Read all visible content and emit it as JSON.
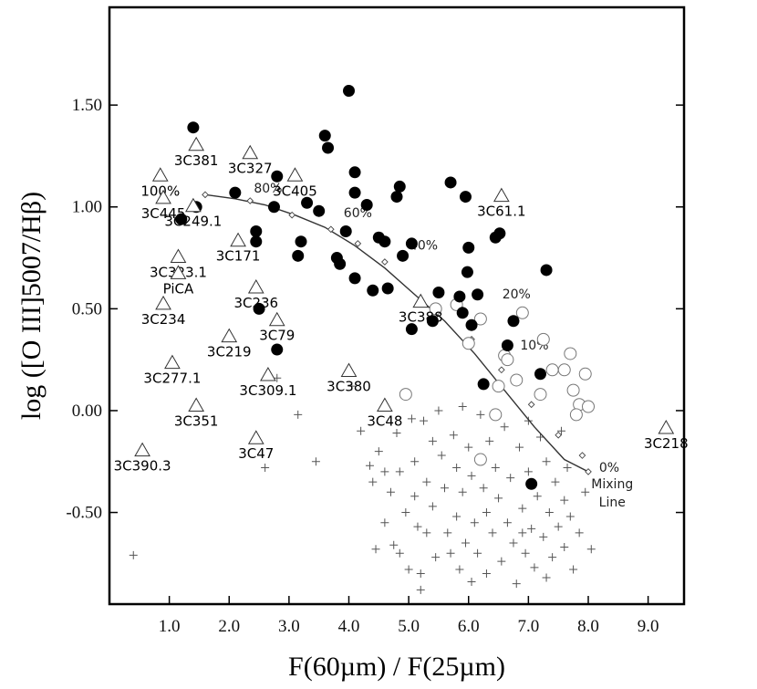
{
  "chart_data": {
    "type": "scatter",
    "xlabel": "F(60µm) / F(25µm)",
    "ylabel": "log ([O III]5007/Hβ)",
    "xlim": [
      0,
      9.6
    ],
    "ylim": [
      -0.95,
      1.98
    ],
    "x_ticks": [
      {
        "v": 1.0,
        "label": "1.0"
      },
      {
        "v": 2.0,
        "label": "2.0"
      },
      {
        "v": 3.0,
        "label": "3.0"
      },
      {
        "v": 4.0,
        "label": "4.0"
      },
      {
        "v": 5.0,
        "label": "5.0"
      },
      {
        "v": 6.0,
        "label": "6.0"
      },
      {
        "v": 7.0,
        "label": "7.0"
      },
      {
        "v": 8.0,
        "label": "8.0"
      },
      {
        "v": 9.0,
        "label": "9.0"
      }
    ],
    "y_ticks": [
      {
        "v": 1.5,
        "label": "1.50"
      },
      {
        "v": 1.0,
        "label": "1.00"
      },
      {
        "v": 0.5,
        "label": "0.50"
      },
      {
        "v": 0.0,
        "label": "0.00"
      },
      {
        "v": -0.5,
        "label": "-0.50"
      }
    ],
    "grid": false,
    "filled_circles": [
      [
        1.4,
        1.39
      ],
      [
        1.2,
        0.94
      ],
      [
        1.45,
        1.0
      ],
      [
        2.1,
        1.07
      ],
      [
        2.45,
        0.88
      ],
      [
        2.45,
        0.83
      ],
      [
        2.5,
        0.5
      ],
      [
        2.8,
        1.15
      ],
      [
        2.75,
        1.0
      ],
      [
        2.8,
        0.3
      ],
      [
        3.15,
        0.76
      ],
      [
        3.2,
        0.83
      ],
      [
        3.3,
        1.02
      ],
      [
        3.5,
        0.98
      ],
      [
        3.6,
        1.35
      ],
      [
        3.65,
        1.29
      ],
      [
        3.8,
        0.75
      ],
      [
        3.85,
        0.72
      ],
      [
        3.95,
        0.88
      ],
      [
        4.0,
        1.57
      ],
      [
        4.1,
        1.17
      ],
      [
        4.1,
        1.07
      ],
      [
        4.1,
        0.65
      ],
      [
        4.3,
        1.01
      ],
      [
        4.4,
        0.59
      ],
      [
        4.5,
        0.85
      ],
      [
        4.6,
        0.83
      ],
      [
        4.65,
        0.6
      ],
      [
        4.8,
        1.05
      ],
      [
        4.85,
        1.1
      ],
      [
        4.9,
        0.76
      ],
      [
        5.05,
        0.4
      ],
      [
        5.05,
        0.82
      ],
      [
        5.5,
        0.58
      ],
      [
        5.4,
        0.44
      ],
      [
        5.7,
        1.12
      ],
      [
        5.85,
        0.56
      ],
      [
        5.9,
        0.48
      ],
      [
        5.95,
        1.05
      ],
      [
        5.98,
        0.68
      ],
      [
        6.0,
        0.8
      ],
      [
        6.05,
        0.42
      ],
      [
        6.15,
        0.57
      ],
      [
        6.25,
        0.13
      ],
      [
        6.45,
        0.85
      ],
      [
        6.52,
        0.87
      ],
      [
        6.65,
        0.32
      ],
      [
        6.75,
        0.44
      ],
      [
        7.05,
        -0.36
      ],
      [
        7.2,
        0.18
      ],
      [
        7.3,
        0.69
      ]
    ],
    "open_circles": [
      [
        4.95,
        0.08
      ],
      [
        5.45,
        0.5
      ],
      [
        5.8,
        0.52
      ],
      [
        6.2,
        0.45
      ],
      [
        6.0,
        0.33
      ],
      [
        6.45,
        -0.02
      ],
      [
        6.2,
        -0.24
      ],
      [
        6.5,
        0.12
      ],
      [
        6.6,
        0.27
      ],
      [
        6.65,
        0.25
      ],
      [
        6.9,
        0.48
      ],
      [
        6.8,
        0.15
      ],
      [
        7.25,
        0.35
      ],
      [
        7.2,
        0.08
      ],
      [
        7.4,
        0.2
      ],
      [
        7.6,
        0.2
      ],
      [
        7.7,
        0.28
      ],
      [
        7.75,
        0.1
      ],
      [
        7.85,
        0.03
      ],
      [
        7.95,
        0.18
      ],
      [
        8.0,
        0.02
      ],
      [
        7.8,
        -0.02
      ]
    ],
    "triangles": [
      {
        "x": 1.45,
        "y": 1.3,
        "label": "3C381"
      },
      {
        "x": 2.35,
        "y": 1.26,
        "label": "3C327"
      },
      {
        "x": 3.1,
        "y": 1.15,
        "label": "3C405"
      },
      {
        "x": 0.85,
        "y": 1.15,
        "label": "100%"
      },
      {
        "x": 0.9,
        "y": 1.04,
        "label": "3C445"
      },
      {
        "x": 1.4,
        "y": 1.0,
        "label": "3C249.1"
      },
      {
        "x": 6.55,
        "y": 1.05,
        "label": "3C61.1"
      },
      {
        "x": 2.15,
        "y": 0.83,
        "label": "3C171"
      },
      {
        "x": 1.15,
        "y": 0.75,
        "label": "3C323.1"
      },
      {
        "x": 1.15,
        "y": 0.67,
        "label": "PiCA"
      },
      {
        "x": 2.45,
        "y": 0.6,
        "label": "3C236"
      },
      {
        "x": 0.9,
        "y": 0.52,
        "label": "3C234"
      },
      {
        "x": 5.2,
        "y": 0.53,
        "label": "3C388"
      },
      {
        "x": 2.8,
        "y": 0.44,
        "label": "3C79"
      },
      {
        "x": 2.0,
        "y": 0.36,
        "label": "3C219"
      },
      {
        "x": 1.05,
        "y": 0.23,
        "label": "3C277.1"
      },
      {
        "x": 2.65,
        "y": 0.17,
        "label": "3C309.1"
      },
      {
        "x": 4.0,
        "y": 0.19,
        "label": "3C380"
      },
      {
        "x": 1.45,
        "y": 0.02,
        "label": "3C351"
      },
      {
        "x": 4.6,
        "y": 0.02,
        "label": "3C48"
      },
      {
        "x": 9.3,
        "y": -0.09,
        "label": "3C218"
      },
      {
        "x": 2.45,
        "y": -0.14,
        "label": "3C47"
      },
      {
        "x": 0.55,
        "y": -0.2,
        "label": "3C390.3"
      }
    ],
    "crosses": [
      [
        0.4,
        -0.71
      ],
      [
        2.6,
        -0.28
      ],
      [
        2.8,
        0.16
      ],
      [
        3.15,
        -0.02
      ],
      [
        3.45,
        -0.25
      ],
      [
        4.05,
        0.12
      ],
      [
        4.2,
        -0.1
      ],
      [
        4.35,
        -0.27
      ],
      [
        4.4,
        -0.35
      ],
      [
        4.45,
        -0.68
      ],
      [
        4.5,
        -0.2
      ],
      [
        4.6,
        -0.3
      ],
      [
        4.6,
        -0.55
      ],
      [
        4.7,
        -0.4
      ],
      [
        4.75,
        -0.66
      ],
      [
        4.8,
        -0.11
      ],
      [
        4.85,
        -0.3
      ],
      [
        4.85,
        -0.7
      ],
      [
        4.95,
        -0.5
      ],
      [
        5.0,
        -0.78
      ],
      [
        5.05,
        -0.04
      ],
      [
        5.1,
        -0.25
      ],
      [
        5.1,
        -0.42
      ],
      [
        5.15,
        -0.57
      ],
      [
        5.2,
        -0.8
      ],
      [
        5.25,
        -0.05
      ],
      [
        5.3,
        -0.35
      ],
      [
        5.3,
        -0.6
      ],
      [
        5.4,
        -0.15
      ],
      [
        5.4,
        -0.47
      ],
      [
        5.45,
        -0.72
      ],
      [
        5.5,
        0.0
      ],
      [
        5.55,
        -0.22
      ],
      [
        5.6,
        -0.38
      ],
      [
        5.65,
        -0.6
      ],
      [
        5.7,
        -0.7
      ],
      [
        5.75,
        -0.12
      ],
      [
        5.8,
        -0.28
      ],
      [
        5.8,
        -0.52
      ],
      [
        5.85,
        -0.78
      ],
      [
        5.9,
        0.02
      ],
      [
        5.9,
        -0.4
      ],
      [
        5.95,
        -0.65
      ],
      [
        6.0,
        -0.18
      ],
      [
        6.05,
        -0.32
      ],
      [
        6.05,
        -0.84
      ],
      [
        6.1,
        -0.55
      ],
      [
        6.15,
        -0.7
      ],
      [
        6.2,
        -0.02
      ],
      [
        6.25,
        -0.38
      ],
      [
        6.3,
        -0.5
      ],
      [
        6.3,
        -0.8
      ],
      [
        6.35,
        -0.15
      ],
      [
        6.4,
        -0.6
      ],
      [
        6.45,
        -0.28
      ],
      [
        6.5,
        -0.43
      ],
      [
        6.55,
        -0.74
      ],
      [
        6.6,
        -0.08
      ],
      [
        6.65,
        -0.55
      ],
      [
        6.7,
        -0.33
      ],
      [
        6.75,
        -0.65
      ],
      [
        6.8,
        -0.85
      ],
      [
        6.85,
        -0.18
      ],
      [
        6.9,
        -0.48
      ],
      [
        6.95,
        -0.7
      ],
      [
        7.0,
        -0.05
      ],
      [
        7.0,
        -0.3
      ],
      [
        7.05,
        -0.58
      ],
      [
        7.1,
        -0.77
      ],
      [
        7.15,
        -0.42
      ],
      [
        7.2,
        -0.13
      ],
      [
        7.25,
        -0.62
      ],
      [
        7.3,
        -0.25
      ],
      [
        7.35,
        -0.5
      ],
      [
        7.4,
        -0.72
      ],
      [
        7.45,
        -0.35
      ],
      [
        7.5,
        -0.57
      ],
      [
        7.55,
        -0.1
      ],
      [
        7.6,
        -0.44
      ],
      [
        7.6,
        -0.67
      ],
      [
        7.65,
        -0.28
      ],
      [
        7.7,
        -0.52
      ],
      [
        7.75,
        -0.78
      ],
      [
        7.85,
        -0.6
      ],
      [
        7.95,
        -0.4
      ],
      [
        8.05,
        -0.68
      ],
      [
        7.3,
        -0.82
      ],
      [
        5.2,
        -0.88
      ],
      [
        6.9,
        -0.6
      ]
    ],
    "mixing_line": {
      "points": [
        [
          1.6,
          1.06
        ],
        [
          2.1,
          1.04
        ],
        [
          2.6,
          1.01
        ],
        [
          3.1,
          0.96
        ],
        [
          3.6,
          0.9
        ],
        [
          4.1,
          0.81
        ],
        [
          4.6,
          0.7
        ],
        [
          5.1,
          0.57
        ],
        [
          5.6,
          0.44
        ],
        [
          6.1,
          0.28
        ],
        [
          6.6,
          0.1
        ],
        [
          7.1,
          -0.08
        ],
        [
          7.6,
          -0.24
        ],
        [
          8.0,
          -0.3
        ]
      ],
      "markers": [
        [
          1.6,
          1.06
        ],
        [
          2.35,
          1.03
        ],
        [
          3.05,
          0.96
        ],
        [
          3.7,
          0.89
        ],
        [
          4.15,
          0.82
        ],
        [
          4.6,
          0.73
        ],
        [
          5.45,
          0.5
        ],
        [
          6.05,
          0.35
        ],
        [
          6.55,
          0.2
        ],
        [
          7.05,
          0.03
        ],
        [
          7.5,
          -0.12
        ],
        [
          7.9,
          -0.22
        ],
        [
          8.0,
          -0.3
        ]
      ],
      "pct_labels": [
        {
          "x": 2.65,
          "y": 1.07,
          "label": "80%"
        },
        {
          "x": 4.15,
          "y": 0.95,
          "label": "60%"
        },
        {
          "x": 5.25,
          "y": 0.79,
          "label": "40%"
        },
        {
          "x": 6.8,
          "y": 0.55,
          "label": "20%"
        },
        {
          "x": 7.1,
          "y": 0.3,
          "label": "10%"
        },
        {
          "x": 8.35,
          "y": -0.3,
          "label": "0%"
        }
      ],
      "label_lines": [
        {
          "x": 8.4,
          "y": -0.38,
          "label": "Mixing"
        },
        {
          "x": 8.4,
          "y": -0.47,
          "label": "Line"
        }
      ]
    }
  }
}
